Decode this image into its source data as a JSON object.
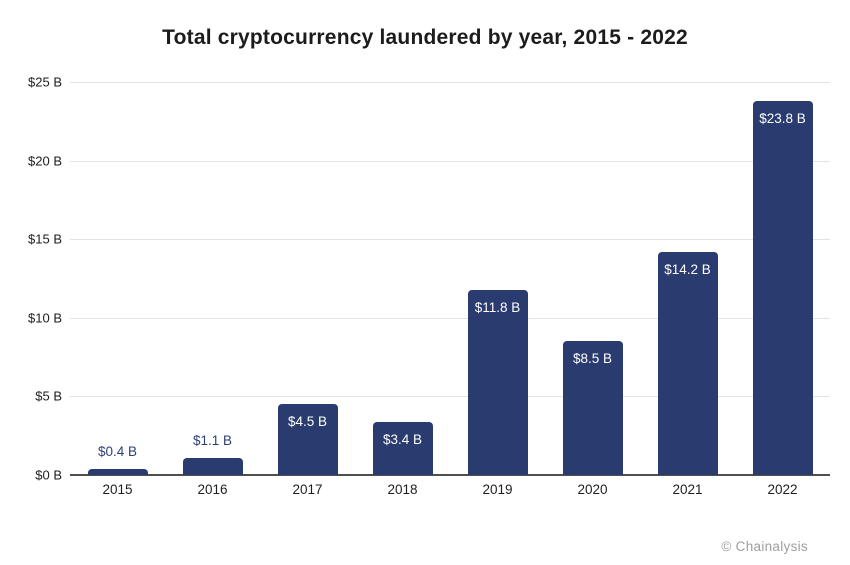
{
  "attribution": "© Chainalysis",
  "chart_data": {
    "type": "bar",
    "title": "Total cryptocurrency laundered by year, 2015 - 2022",
    "categories": [
      "2015",
      "2016",
      "2017",
      "2018",
      "2019",
      "2020",
      "2021",
      "2022"
    ],
    "values": [
      0.4,
      1.1,
      4.5,
      3.4,
      11.8,
      8.5,
      14.2,
      23.8
    ],
    "value_labels": [
      "$0.4 B",
      "$1.1 B",
      "$4.5 B",
      "$3.4 B",
      "$11.8 B",
      "$8.5 B",
      "$14.2 B",
      "$23.8 B"
    ],
    "xlabel": "",
    "ylabel": "",
    "ylim": [
      0,
      25
    ],
    "y_ticks": [
      {
        "value": 0,
        "label": "$0 B"
      },
      {
        "value": 5,
        "label": "$5 B"
      },
      {
        "value": 10,
        "label": "$10 B"
      },
      {
        "value": 15,
        "label": "$15 B"
      },
      {
        "value": 20,
        "label": "$20 B"
      },
      {
        "value": 25,
        "label": "$25 B"
      }
    ],
    "grid": "horizontal",
    "legend": "none",
    "colors": {
      "bar": "#2A3B70",
      "label_inside": "#ffffff",
      "label_above": "#2E3F78",
      "gridline": "#e3e3e3",
      "zero_axis": "#4f4f4f"
    }
  }
}
